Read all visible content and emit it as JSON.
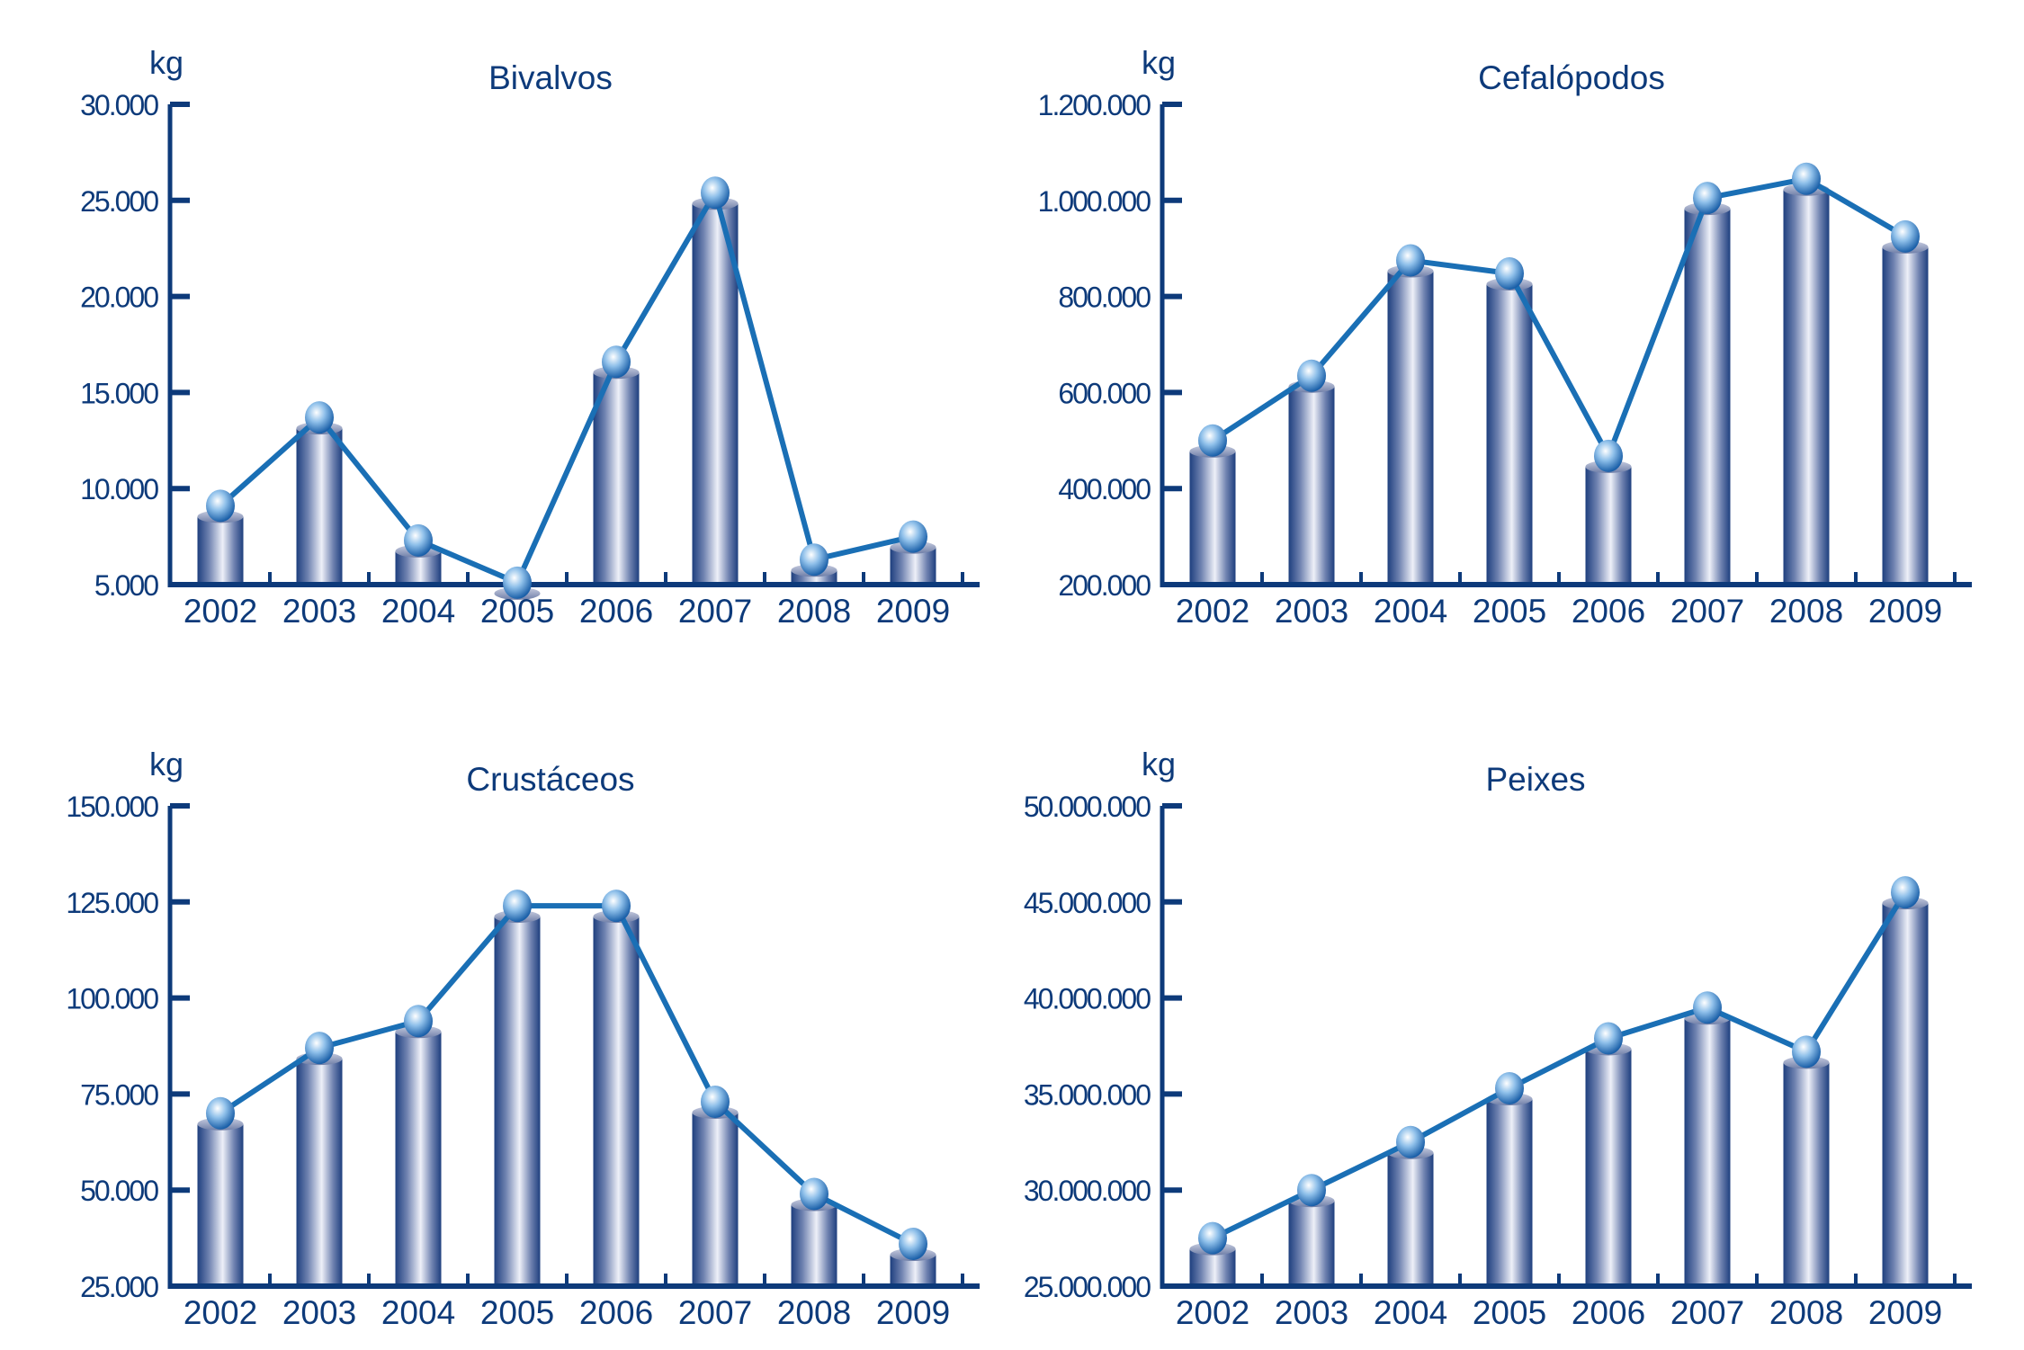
{
  "chart_data": [
    {
      "type": "bar",
      "title": "Bivalvos",
      "ylabel": "kg",
      "categories": [
        "2002",
        "2003",
        "2004",
        "2005",
        "2006",
        "2007",
        "2008",
        "2009"
      ],
      "values": [
        9100,
        13700,
        7300,
        5100,
        16600,
        25400,
        6300,
        7500
      ],
      "ylim": [
        5000,
        30000
      ],
      "yticks": [
        5000,
        10000,
        15000,
        20000,
        25000,
        30000
      ],
      "ytick_labels": [
        "5.000",
        "10.000",
        "15.000",
        "20.000",
        "25.000",
        "30.000"
      ],
      "overlay": "line with markers on same values"
    },
    {
      "type": "bar",
      "title": "Cefalópodos",
      "ylabel": "kg",
      "categories": [
        "2002",
        "2003",
        "2004",
        "2005",
        "2006",
        "2007",
        "2008",
        "2009"
      ],
      "values": [
        500000,
        635000,
        875000,
        848000,
        468000,
        1005000,
        1045000,
        925000
      ],
      "ylim": [
        200000,
        1200000
      ],
      "yticks": [
        200000,
        400000,
        600000,
        800000,
        1000000,
        1200000
      ],
      "ytick_labels": [
        "200.000",
        "400.000",
        "600.000",
        "800.000",
        "1.000.000",
        "1.200.000"
      ],
      "overlay": "line with markers on same values"
    },
    {
      "type": "bar",
      "title": "Crustáceos",
      "ylabel": "kg",
      "categories": [
        "2002",
        "2003",
        "2004",
        "2005",
        "2006",
        "2007",
        "2008",
        "2009"
      ],
      "values": [
        70000,
        87000,
        94000,
        124000,
        124000,
        73000,
        49000,
        36000
      ],
      "ylim": [
        25000,
        150000
      ],
      "yticks": [
        25000,
        50000,
        75000,
        100000,
        125000,
        150000
      ],
      "ytick_labels": [
        "25.000",
        "50.000",
        "75.000",
        "100.000",
        "125.000",
        "150.000"
      ],
      "overlay": "line with markers on same values"
    },
    {
      "type": "bar",
      "title": "Peixes",
      "ylabel": "kg",
      "categories": [
        "2002",
        "2003",
        "2004",
        "2005",
        "2006",
        "2007",
        "2008",
        "2009"
      ],
      "values": [
        27500000,
        30000000,
        32500000,
        35300000,
        37900000,
        39500000,
        37200000,
        45500000
      ],
      "ylim": [
        25000000,
        50000000
      ],
      "yticks": [
        25000000,
        30000000,
        35000000,
        40000000,
        45000000,
        50000000
      ],
      "ytick_labels": [
        "25.000.000",
        "30.000.000",
        "35.000.000",
        "40.000.000",
        "45.000.000",
        "50.000.000"
      ],
      "overlay": "line with markers on same values"
    }
  ],
  "colors": {
    "axis": "#0d3a7a",
    "line": "#1a6fb5",
    "bar_dark": "#1e3f7e",
    "bar_light": "#eef0f8"
  }
}
